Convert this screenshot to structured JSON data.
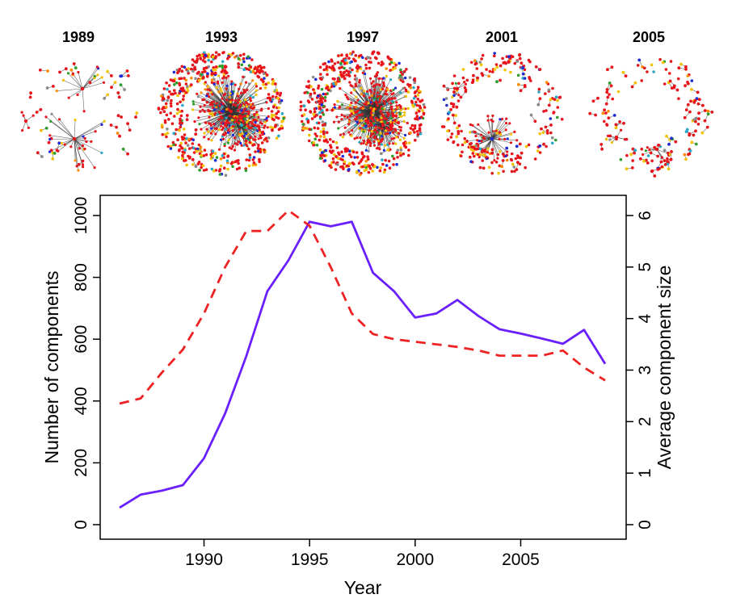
{
  "networks": {
    "panels": [
      {
        "label": "1989",
        "style": "sparse"
      },
      {
        "label": "1993",
        "style": "dense"
      },
      {
        "label": "1997",
        "style": "dense"
      },
      {
        "label": "2001",
        "style": "medium"
      },
      {
        "label": "2005",
        "style": "scatter"
      }
    ],
    "node_colors": [
      "#e8141b",
      "#f2c200",
      "#1d2bd6",
      "#2aa8c8",
      "#2e9e2e",
      "#8a8a8a",
      "#ff8a00"
    ],
    "edge_color": "#333333"
  },
  "chart_data": {
    "type": "line",
    "x": [
      1986,
      1987,
      1988,
      1989,
      1990,
      1991,
      1992,
      1993,
      1994,
      1995,
      1996,
      1997,
      1998,
      1999,
      2000,
      2001,
      2002,
      2003,
      2004,
      2005,
      2006,
      2007,
      2008,
      2009
    ],
    "xlabel": "Year",
    "xlim": [
      1986,
      2009
    ],
    "xticks": [
      "1990",
      "1995",
      "2000",
      "2005"
    ],
    "ylabel": "Number of components",
    "ylim": [
      0,
      1000
    ],
    "yticks": [
      "0",
      "200",
      "400",
      "600",
      "800",
      "1000"
    ],
    "y2label": "Average component size",
    "y2lim": [
      0,
      6
    ],
    "y2ticks": [
      "0",
      "1",
      "2",
      "3",
      "4",
      "5",
      "6"
    ],
    "grid": false,
    "legend": "none",
    "series": [
      {
        "axis": "left",
        "color": "#6a1fff",
        "dash": "solid",
        "values": [
          55,
          97,
          110,
          128,
          215,
          360,
          545,
          755,
          855,
          980,
          965,
          980,
          815,
          755,
          670,
          683,
          727,
          675,
          632,
          618,
          602,
          585,
          630,
          520
        ]
      },
      {
        "axis": "right",
        "color": "#ee2222",
        "dash": "dashed",
        "values": [
          2.35,
          2.45,
          2.95,
          3.4,
          4.1,
          5.0,
          5.7,
          5.7,
          6.1,
          5.8,
          5.0,
          4.1,
          3.7,
          3.6,
          3.55,
          3.5,
          3.45,
          3.38,
          3.28,
          3.28,
          3.28,
          3.38,
          3.05,
          2.8
        ]
      }
    ]
  }
}
